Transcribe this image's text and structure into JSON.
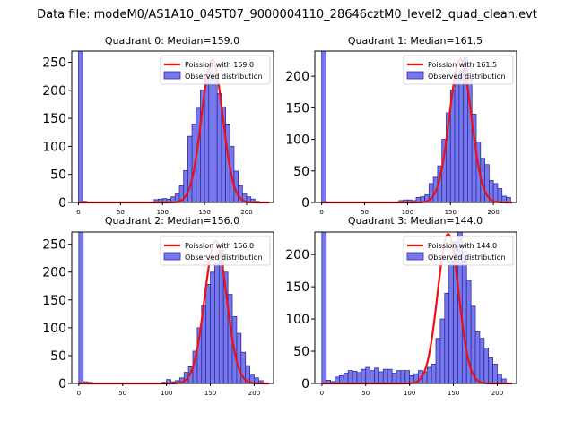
{
  "figure_title": "Data file: modeM0/AS1A10_045T07_9000004110_28646cztM0_level2_quad_clean.evt",
  "colors": {
    "bar_fill": "#7777ee",
    "bar_edge": "#2e2e9a",
    "poisson_line": "#ee1111",
    "axes": "#000000"
  },
  "chart_data": [
    {
      "type": "bar",
      "title": "Quadrant 0: Median=159.0",
      "xlim": [
        -8,
        232
      ],
      "ylim": [
        0,
        270
      ],
      "xticks": [
        0,
        50,
        100,
        150,
        200
      ],
      "yticks": [
        0,
        50,
        100,
        150,
        200,
        250
      ],
      "bin_width": 5,
      "bins": [
        0,
        5,
        10,
        15,
        20,
        25,
        30,
        35,
        40,
        45,
        50,
        55,
        60,
        65,
        70,
        75,
        80,
        85,
        90,
        95,
        100,
        105,
        110,
        115,
        120,
        125,
        130,
        135,
        140,
        145,
        150,
        155,
        160,
        165,
        170,
        175,
        180,
        185,
        190,
        195,
        200,
        205,
        210,
        215
      ],
      "counts": [
        270,
        2,
        1,
        0,
        0,
        0,
        0,
        0,
        0,
        0,
        0,
        0,
        0,
        0,
        0,
        0,
        0,
        0,
        5,
        6,
        7,
        6,
        10,
        15,
        30,
        57,
        118,
        140,
        168,
        200,
        222,
        240,
        230,
        194,
        170,
        140,
        100,
        56,
        30,
        15,
        10,
        6,
        2,
        0
      ],
      "mu": 159.0,
      "amp": 254,
      "legend": {
        "line": "Poission with 159.0",
        "bars": "Observed distribution"
      }
    },
    {
      "type": "bar",
      "title": "Quadrant 1: Median=161.5",
      "xlim": [
        -8,
        227
      ],
      "ylim": [
        0,
        240
      ],
      "xticks": [
        0,
        50,
        100,
        150,
        200
      ],
      "yticks": [
        0,
        50,
        100,
        150,
        200
      ],
      "bin_width": 5,
      "bins": [
        0,
        5,
        10,
        15,
        20,
        25,
        30,
        35,
        40,
        45,
        50,
        55,
        60,
        65,
        70,
        75,
        80,
        85,
        90,
        95,
        100,
        105,
        110,
        115,
        120,
        125,
        130,
        135,
        140,
        145,
        150,
        155,
        160,
        165,
        170,
        175,
        180,
        185,
        190,
        195,
        200,
        205,
        210,
        215
      ],
      "counts": [
        240,
        1,
        0,
        0,
        0,
        0,
        0,
        0,
        0,
        0,
        0,
        0,
        0,
        0,
        0,
        0,
        0,
        0,
        3,
        4,
        4,
        3,
        8,
        9,
        12,
        30,
        40,
        58,
        100,
        142,
        178,
        200,
        210,
        230,
        195,
        140,
        96,
        70,
        60,
        35,
        30,
        22,
        10,
        8
      ],
      "mu": 161.5,
      "amp": 227,
      "legend": {
        "line": "Poission with 161.5",
        "bars": "Observed distribution"
      }
    },
    {
      "type": "bar",
      "title": "Quadrant 2: Median=156.0",
      "xlim": [
        -8,
        222
      ],
      "ylim": [
        0,
        272
      ],
      "xticks": [
        0,
        50,
        100,
        150,
        200
      ],
      "yticks": [
        0,
        50,
        100,
        150,
        200,
        250
      ],
      "bin_width": 5,
      "bins": [
        0,
        5,
        10,
        15,
        20,
        25,
        30,
        35,
        40,
        45,
        50,
        55,
        60,
        65,
        70,
        75,
        80,
        85,
        90,
        95,
        100,
        105,
        110,
        115,
        120,
        125,
        130,
        135,
        140,
        145,
        150,
        155,
        160,
        165,
        170,
        175,
        180,
        185,
        190,
        195,
        200,
        205
      ],
      "counts": [
        272,
        3,
        2,
        0,
        0,
        0,
        0,
        0,
        0,
        0,
        0,
        0,
        0,
        0,
        0,
        0,
        0,
        0,
        0,
        2,
        7,
        3,
        5,
        10,
        20,
        30,
        58,
        100,
        140,
        178,
        200,
        218,
        240,
        200,
        160,
        120,
        90,
        56,
        32,
        15,
        10,
        5
      ],
      "mu": 156.0,
      "amp": 256,
      "legend": {
        "line": "Poission with 156.0",
        "bars": "Observed distribution"
      }
    },
    {
      "type": "bar",
      "title": "Quadrant 3: Median=144.0",
      "xlim": [
        -8,
        222
      ],
      "ylim": [
        0,
        235
      ],
      "xticks": [
        0,
        50,
        100,
        150,
        200
      ],
      "yticks": [
        0,
        50,
        100,
        150,
        200
      ],
      "bin_width": 5,
      "bins": [
        0,
        5,
        10,
        15,
        20,
        25,
        30,
        35,
        40,
        45,
        50,
        55,
        60,
        65,
        70,
        75,
        80,
        85,
        90,
        95,
        100,
        105,
        110,
        115,
        120,
        125,
        130,
        135,
        140,
        145,
        150,
        155,
        160,
        165,
        170,
        175,
        180,
        185,
        190,
        195,
        200,
        205
      ],
      "counts": [
        235,
        5,
        3,
        10,
        12,
        16,
        20,
        19,
        17,
        22,
        25,
        20,
        24,
        18,
        22,
        22,
        16,
        20,
        20,
        20,
        12,
        15,
        20,
        18,
        25,
        30,
        70,
        100,
        140,
        190,
        220,
        235,
        205,
        160,
        120,
        80,
        70,
        55,
        40,
        30,
        14,
        7
      ],
      "mu": 144.0,
      "amp": 232,
      "legend": {
        "line": "Poission with 144.0",
        "bars": "Observed distribution"
      }
    }
  ]
}
